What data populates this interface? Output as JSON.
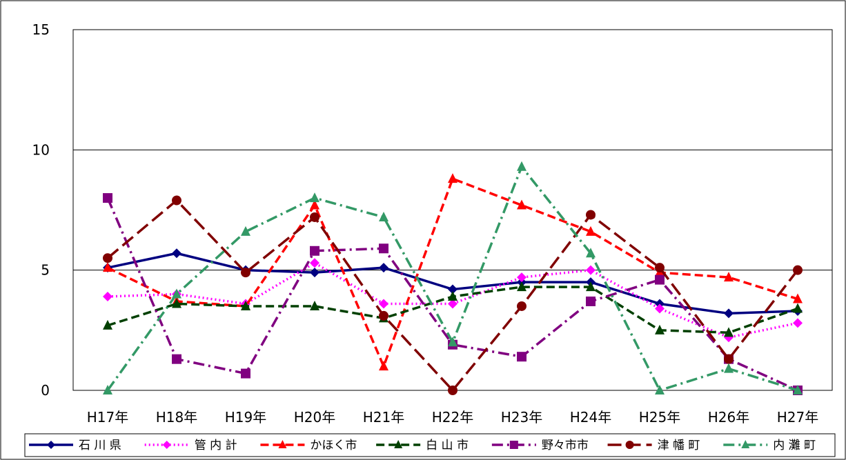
{
  "chart_data": {
    "type": "line",
    "title": "",
    "xlabel": "",
    "ylabel": "",
    "ylim": [
      0,
      15
    ],
    "yticks": [
      "0",
      "5",
      "10",
      "15"
    ],
    "grid": "horizontal",
    "legend_position": "bottom",
    "categories": [
      "H17年",
      "H18年",
      "H19年",
      "H20年",
      "H21年",
      "H22年",
      "H23年",
      "H24年",
      "H25年",
      "H26年",
      "H27年"
    ],
    "series": [
      {
        "name": "石 川 県",
        "color": "#000080",
        "marker": "diamond",
        "dash": "solid",
        "values": [
          5.1,
          5.7,
          5.0,
          4.9,
          5.1,
          4.2,
          4.5,
          4.5,
          3.6,
          3.2,
          3.3
        ]
      },
      {
        "name": "管 内 計",
        "color": "#FF00FF",
        "marker": "diamond",
        "dash": "dot",
        "values": [
          3.9,
          4.0,
          3.6,
          5.3,
          3.6,
          3.6,
          4.7,
          5.0,
          3.4,
          2.2,
          2.8
        ]
      },
      {
        "name": "かほく市",
        "color": "#FF0000",
        "marker": "triangle",
        "dash": "dash",
        "values": [
          5.1,
          3.7,
          3.5,
          7.7,
          1.0,
          8.8,
          7.7,
          6.6,
          4.9,
          4.7,
          3.8
        ]
      },
      {
        "name": "白 山 市",
        "color": "#004000",
        "marker": "triangle",
        "dash": "dash",
        "values": [
          2.7,
          3.6,
          3.5,
          3.5,
          3.0,
          3.9,
          4.3,
          4.3,
          2.5,
          2.4,
          3.4
        ]
      },
      {
        "name": "野々市市",
        "color": "#800080",
        "marker": "square",
        "dash": "dashdot",
        "values": [
          8.0,
          1.3,
          0.7,
          5.8,
          5.9,
          1.9,
          1.4,
          3.7,
          4.6,
          1.3,
          0.0
        ]
      },
      {
        "name": "津 幡 町",
        "color": "#800000",
        "marker": "circle",
        "dash": "longdash",
        "values": [
          5.5,
          7.9,
          4.9,
          7.2,
          3.1,
          0.0,
          3.5,
          7.3,
          5.1,
          1.3,
          5.0
        ]
      },
      {
        "name": "内 灘 町",
        "color": "#339966",
        "marker": "triangle",
        "dash": "dashdot",
        "values": [
          0.0,
          4.0,
          6.6,
          8.0,
          7.2,
          2.0,
          9.3,
          5.7,
          0.0,
          0.9,
          0.0
        ]
      }
    ]
  }
}
